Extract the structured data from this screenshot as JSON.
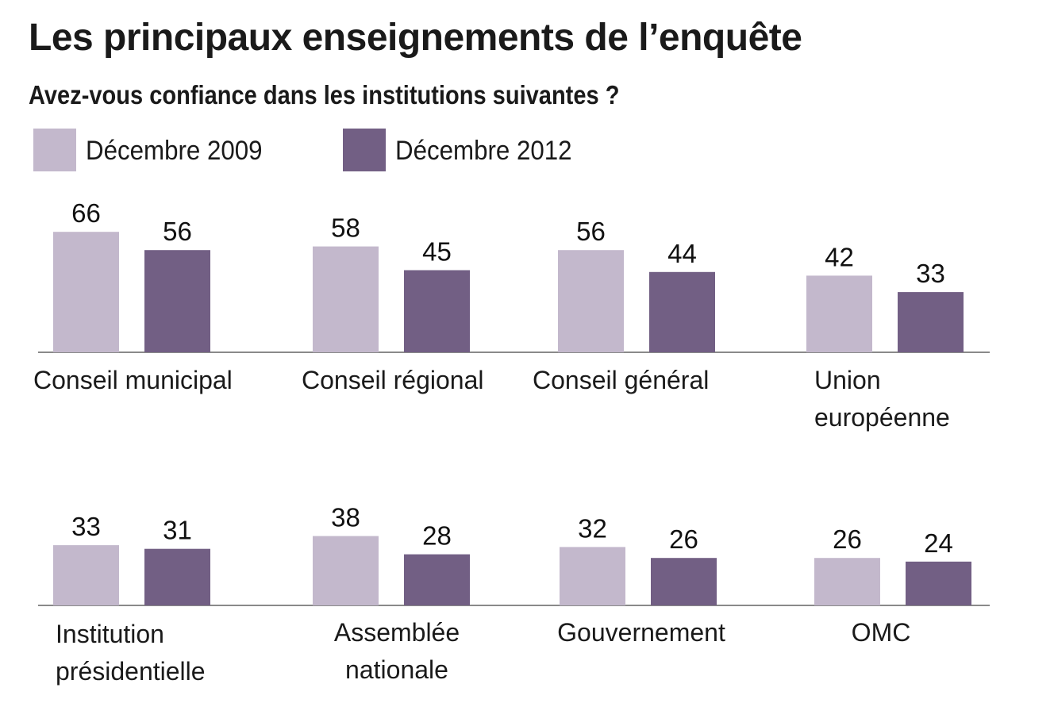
{
  "title": "Les principaux enseignements de l’enquête",
  "subtitle": "Avez-vous confiance dans les institutions suivantes ?",
  "legend": [
    {
      "label": "Décembre 2009",
      "color": "#c3b8cc"
    },
    {
      "label": "Décembre 2012",
      "color": "#725f84"
    }
  ],
  "colors": {
    "axis": "#8a8a8a"
  },
  "chart_data": [
    {
      "type": "bar",
      "title": "Les principaux enseignements de l’enquête",
      "subtitle": "Avez-vous confiance dans les institutions suivantes ?",
      "categories": [
        [
          "Conseil municipal"
        ],
        [
          "Conseil régional"
        ],
        [
          "Conseil général"
        ],
        [
          "Union",
          "européenne"
        ]
      ],
      "series": [
        {
          "name": "Décembre 2009",
          "values": [
            66,
            58,
            56,
            42
          ]
        },
        {
          "name": "Décembre 2012",
          "values": [
            56,
            45,
            44,
            33
          ]
        }
      ],
      "unit": "%",
      "ylim": [
        0,
        100
      ],
      "grid": false,
      "legend_position": "top-left"
    },
    {
      "type": "bar",
      "categories": [
        [
          "Institution",
          "présidentielle"
        ],
        [
          "Assemblée",
          "nationale"
        ],
        [
          "Gouvernement"
        ],
        [
          "OMC"
        ]
      ],
      "series": [
        {
          "name": "Décembre 2009",
          "values": [
            33,
            38,
            32,
            26
          ]
        },
        {
          "name": "Décembre 2012",
          "values": [
            31,
            28,
            26,
            24
          ]
        }
      ],
      "unit": "%",
      "ylim": [
        0,
        100
      ],
      "grid": false
    }
  ]
}
